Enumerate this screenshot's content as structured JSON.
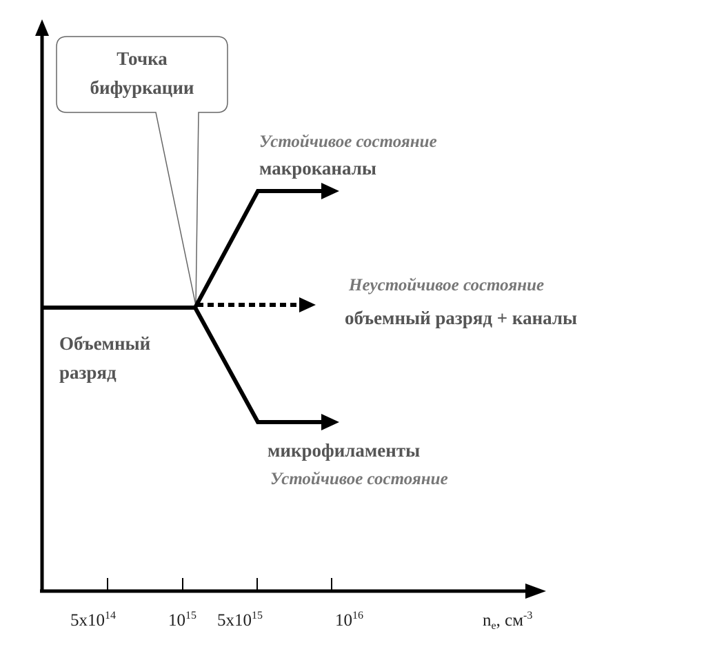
{
  "callout": {
    "line1": "Точка",
    "line2": "бифуркации"
  },
  "branches": {
    "upper": {
      "state": "Устойчивое состояние",
      "name": "макроканалы"
    },
    "middle": {
      "state": "Неустойчивое состояние",
      "name": "объемный разряд + каналы"
    },
    "lower": {
      "name": "микрофиламенты",
      "state": "Устойчивое состояние"
    }
  },
  "initial": {
    "line1": "Объемный",
    "line2": "разряд"
  },
  "x_axis": {
    "ticks": [
      {
        "base": "5x10",
        "exp": "14"
      },
      {
        "base": "10",
        "exp": "15"
      },
      {
        "base": "5x10",
        "exp": "15"
      },
      {
        "base": "10",
        "exp": "16"
      }
    ],
    "label": {
      "symbol": "n",
      "sub": "e",
      "unit": ", см",
      "exp": "-3"
    }
  },
  "colors": {
    "line": "#000000",
    "label": "#555555",
    "state": "#777777",
    "callout": "#666666"
  }
}
